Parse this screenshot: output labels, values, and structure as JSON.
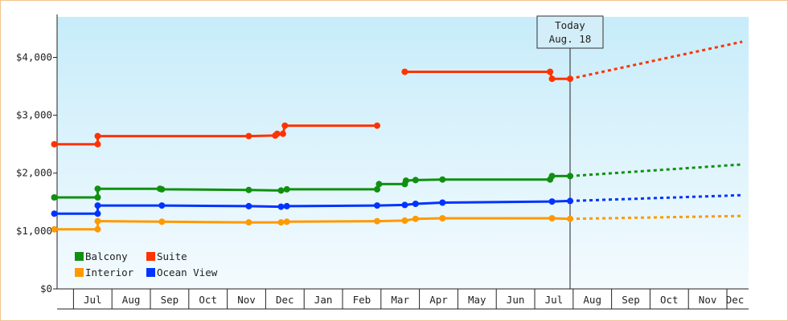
{
  "chart_data": {
    "type": "line",
    "title": "",
    "xlabel": "",
    "ylabel": "",
    "ylim": [
      0,
      4700
    ],
    "y_ticks": [
      {
        "value": 0,
        "label": "$0"
      },
      {
        "value": 1000,
        "label": "$1,000"
      },
      {
        "value": 2000,
        "label": "$2,000"
      },
      {
        "value": 3000,
        "label": "$3,000"
      },
      {
        "value": 4000,
        "label": "$4,000"
      }
    ],
    "x_domain": [
      "Jun",
      "Dec"
    ],
    "months": [
      "Jul",
      "Aug",
      "Sep",
      "Oct",
      "Nov",
      "Dec",
      "Jan",
      "Feb",
      "Mar",
      "Apr",
      "May",
      "Jun",
      "Jul",
      "Aug",
      "Sep",
      "Oct",
      "Nov",
      "Dec"
    ],
    "today": {
      "line1": "Today",
      "line2": "Aug. 18",
      "x": 13.42
    },
    "legend_position": "bottom-left",
    "series": [
      {
        "name": "Suite",
        "color": "#ff3300",
        "segments": [
          [
            [
              0.0,
              2500
            ],
            [
              1.13,
              2500
            ],
            [
              1.13,
              2640
            ],
            [
              5.06,
              2640
            ],
            [
              5.75,
              2650
            ],
            [
              5.8,
              2680
            ],
            [
              5.95,
              2680
            ],
            [
              6.0,
              2820
            ],
            [
              8.4,
              2820
            ]
          ],
          [
            [
              9.12,
              3750
            ],
            [
              12.9,
              3750
            ],
            [
              12.95,
              3630
            ],
            [
              13.42,
              3630
            ]
          ]
        ],
        "projection": [
          [
            13.42,
            3630
          ],
          [
            17.9,
            4270
          ]
        ]
      },
      {
        "name": "Balcony",
        "color": "#109010",
        "segments": [
          [
            [
              0.0,
              1580
            ],
            [
              1.13,
              1580
            ],
            [
              1.13,
              1730
            ],
            [
              2.75,
              1730
            ],
            [
              2.8,
              1720
            ],
            [
              5.06,
              1710
            ],
            [
              5.9,
              1700
            ],
            [
              6.05,
              1720
            ],
            [
              8.4,
              1720
            ],
            [
              8.45,
              1810
            ],
            [
              9.12,
              1810
            ],
            [
              9.15,
              1870
            ],
            [
              9.4,
              1880
            ],
            [
              10.1,
              1890
            ],
            [
              12.9,
              1890
            ],
            [
              12.95,
              1950
            ],
            [
              13.42,
              1950
            ]
          ]
        ],
        "projection": [
          [
            13.42,
            1950
          ],
          [
            17.9,
            2150
          ]
        ]
      },
      {
        "name": "Ocean View",
        "color": "#0033ff",
        "segments": [
          [
            [
              0.0,
              1300
            ],
            [
              1.13,
              1300
            ],
            [
              1.13,
              1440
            ],
            [
              2.8,
              1440
            ],
            [
              5.06,
              1430
            ],
            [
              5.9,
              1420
            ],
            [
              6.05,
              1430
            ],
            [
              8.4,
              1440
            ],
            [
              9.12,
              1450
            ],
            [
              9.4,
              1470
            ],
            [
              10.1,
              1490
            ],
            [
              12.95,
              1510
            ],
            [
              13.42,
              1520
            ]
          ]
        ],
        "projection": [
          [
            13.42,
            1520
          ],
          [
            17.9,
            1620
          ]
        ]
      },
      {
        "name": "Interior",
        "color": "#ff9900",
        "segments": [
          [
            [
              0.0,
              1030
            ],
            [
              1.13,
              1030
            ],
            [
              1.13,
              1170
            ],
            [
              2.8,
              1160
            ],
            [
              5.06,
              1150
            ],
            [
              5.9,
              1150
            ],
            [
              6.05,
              1160
            ],
            [
              8.4,
              1170
            ],
            [
              9.12,
              1180
            ],
            [
              9.4,
              1210
            ],
            [
              10.1,
              1220
            ],
            [
              12.95,
              1220
            ],
            [
              13.42,
              1210
            ]
          ]
        ],
        "projection": [
          [
            13.42,
            1210
          ],
          [
            17.9,
            1260
          ]
        ]
      }
    ],
    "legend": [
      {
        "name": "Balcony",
        "color": "#109010"
      },
      {
        "name": "Suite",
        "color": "#ff3300"
      },
      {
        "name": "Interior",
        "color": "#ff9900"
      },
      {
        "name": "Ocean View",
        "color": "#0033ff"
      }
    ]
  }
}
